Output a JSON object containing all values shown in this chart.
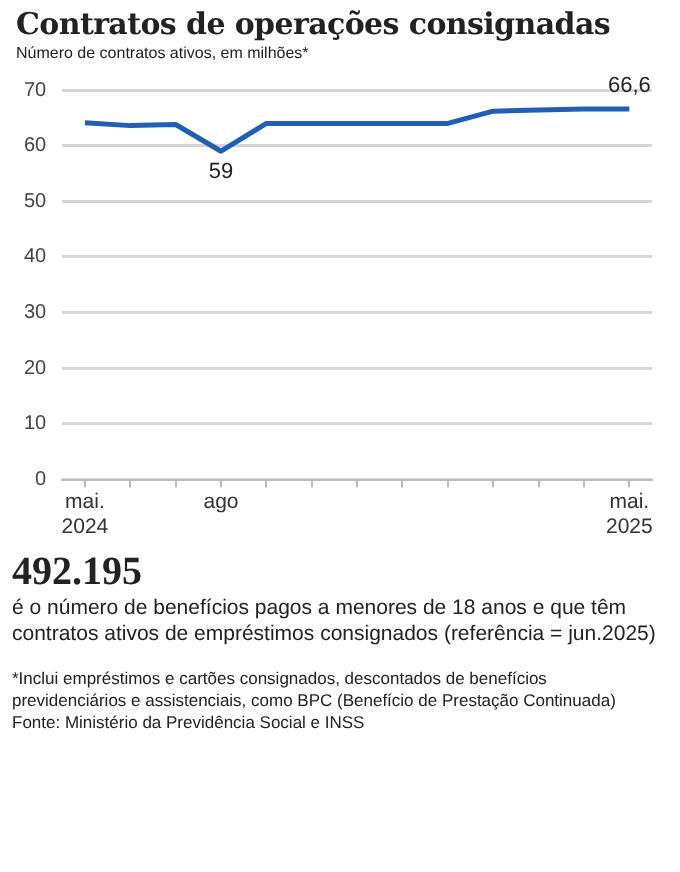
{
  "chart_data": {
    "type": "line",
    "title": "Contratos de operações consignadas",
    "subtitle": "Número de contratos ativos, em milhões*",
    "categories": [
      "mai. 2024",
      null,
      null,
      "ago",
      null,
      null,
      null,
      null,
      null,
      null,
      null,
      null,
      "mai. 2025"
    ],
    "series": [
      {
        "color": "#1f5fb4",
        "values": [
          64.1,
          63.6,
          63.8,
          59,
          64,
          64,
          64,
          64,
          64,
          66.2,
          66.4,
          66.6,
          66.6
        ],
        "value_labels": [
          null,
          null,
          null,
          "59",
          null,
          null,
          null,
          null,
          null,
          null,
          null,
          null,
          "66,6"
        ]
      }
    ],
    "ylim": [
      0,
      70
    ],
    "yticks": [
      0,
      10,
      20,
      30,
      40,
      50,
      60,
      70
    ],
    "grid": "y",
    "legend": false,
    "marker": "none",
    "line_style": "solid",
    "annotations": [
      "492.195",
      "é o número de benefícios pagos a menores de 18 anos e que têm contratos ativos de empréstimos consignados (referência = jun.2025)",
      "*Inclui empréstimos e cartões consignados, descontados de benefícios previdenciários e assistenciais, como BPC (Benefício de Prestação Continuada)",
      "Fonte: Ministério da Previdência Social e INSS"
    ]
  }
}
